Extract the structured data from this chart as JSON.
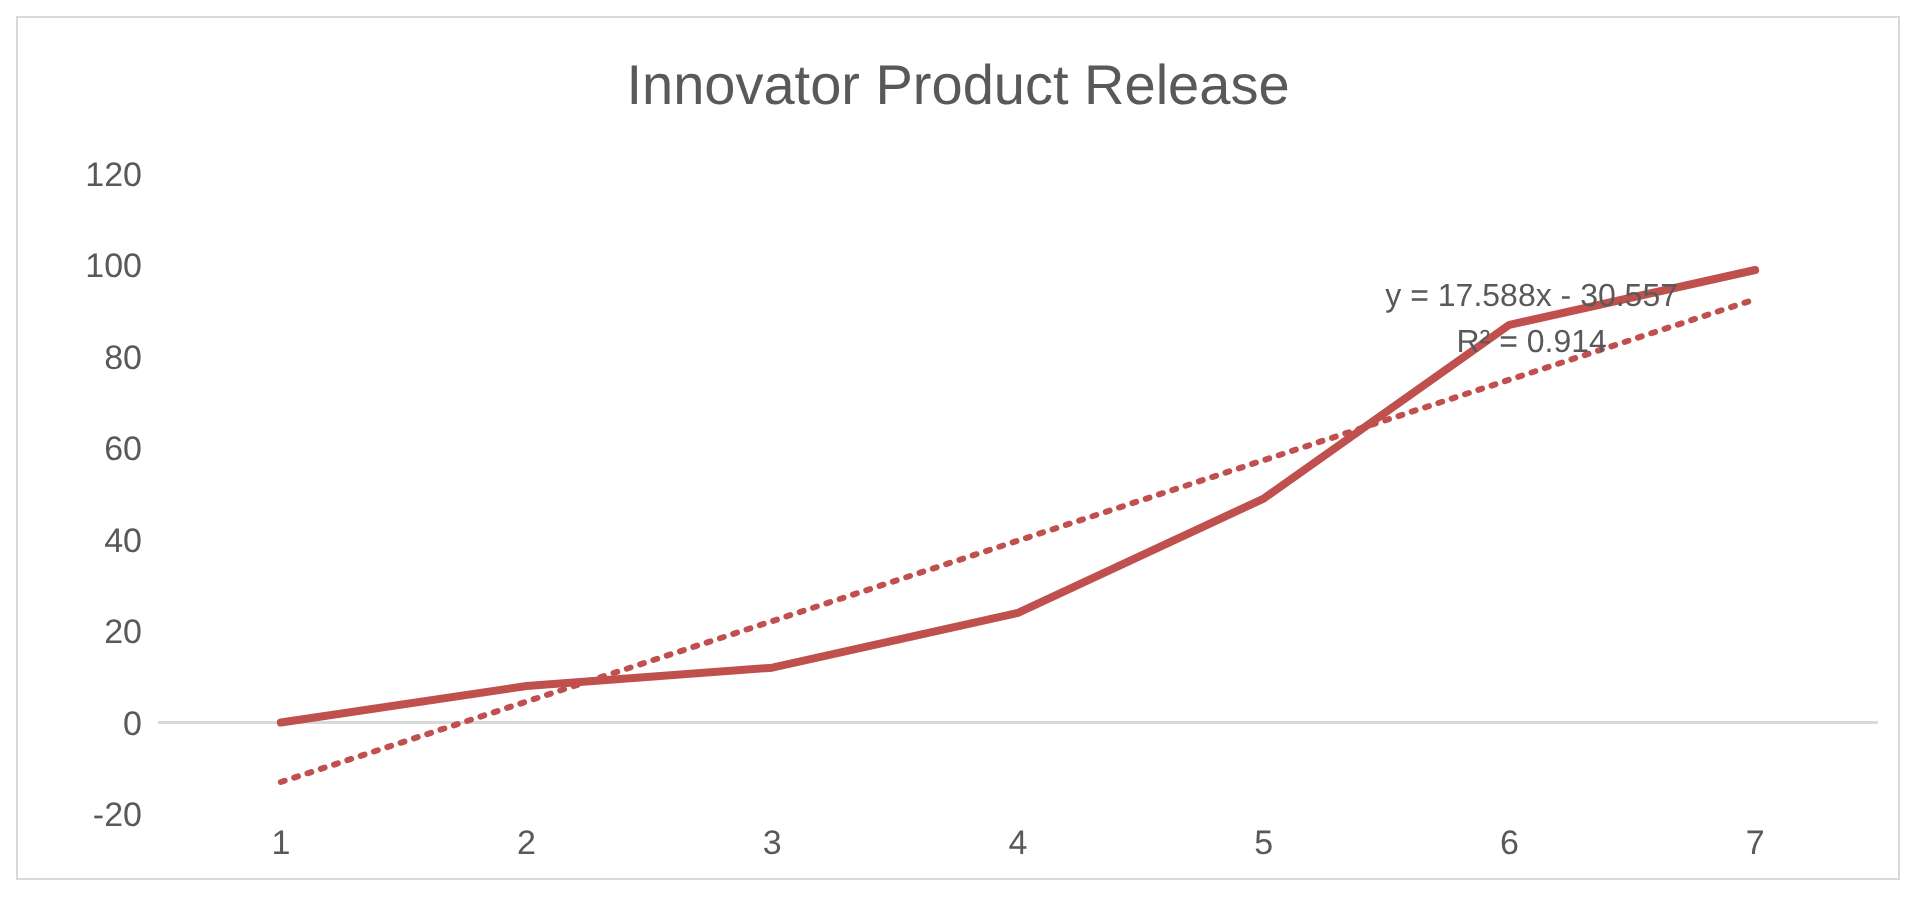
{
  "chart_data": {
    "type": "line",
    "title": "Innovator Product Release",
    "x": [
      1,
      2,
      3,
      4,
      5,
      6,
      7
    ],
    "series": [
      {
        "color": "#c0504d",
        "values": [
          0,
          8,
          12,
          24,
          49,
          87,
          99
        ]
      },
      {
        "type": "line",
        "x": [
          1,
          7
        ],
        "color": "#c0504d",
        "values": [
          -13,
          92.6
        ],
        "line_style": "dotted"
      }
    ],
    "xlim": [
      0.5,
      7.5
    ],
    "xticks": [
      1,
      2,
      3,
      4,
      5,
      6,
      7
    ],
    "ylim": [
      -20,
      120
    ],
    "yticks": [
      -20,
      0,
      20,
      40,
      60,
      80,
      100,
      120
    ],
    "marker": "none",
    "annotations": [
      "y = 17.588x - 30.557",
      "R² = 0.914"
    ]
  }
}
